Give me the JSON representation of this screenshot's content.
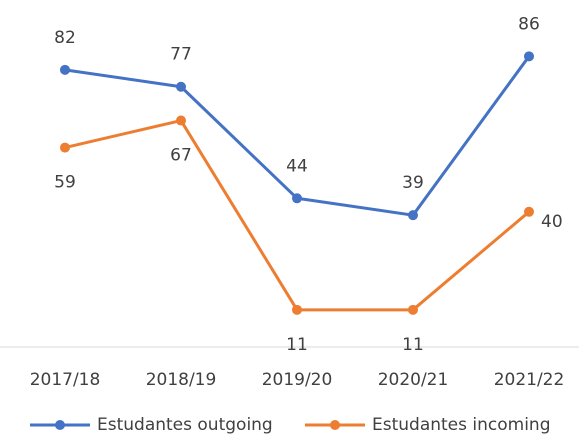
{
  "chart_data": {
    "type": "line",
    "categories": [
      "2017/18",
      "2018/19",
      "2019/20",
      "2020/21",
      "2021/22"
    ],
    "series": [
      {
        "name": "Estudantes outgoing",
        "color": "#4472c4",
        "values": [
          82,
          77,
          44,
          39,
          86
        ]
      },
      {
        "name": "Estudantes incoming",
        "color": "#ed7d31",
        "values": [
          59,
          67,
          11,
          11,
          40
        ]
      }
    ],
    "ylim": [
      0,
      100
    ],
    "legend": "bottom"
  }
}
